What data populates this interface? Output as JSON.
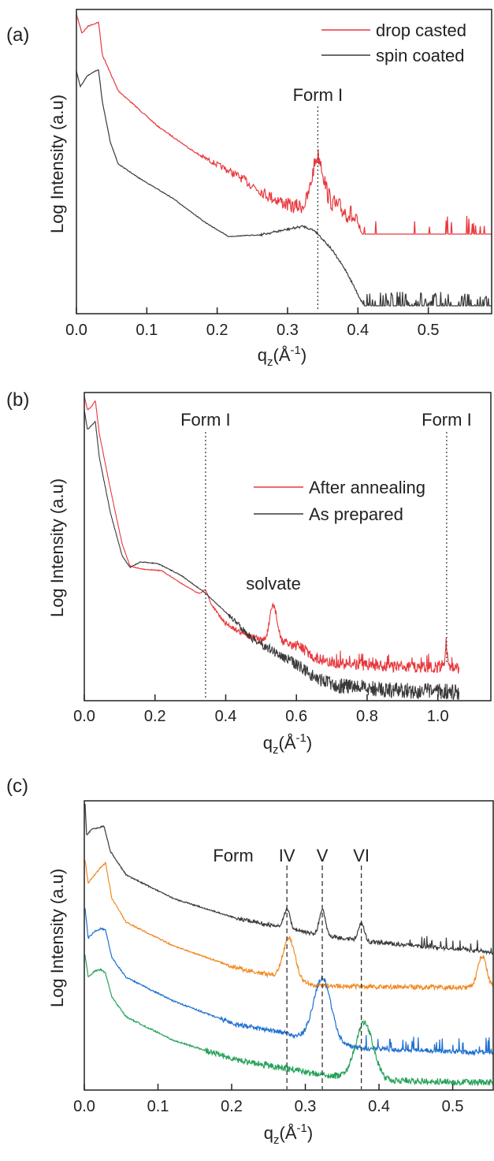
{
  "chart_data": [
    {
      "type": "line",
      "panel_label": "(a)",
      "ylabel": "Log Intensity (a.u)",
      "xlabel_main": "q",
      "xlabel_sub": "z",
      "xlabel_unit": "(Å",
      "xlabel_exp": "-1",
      "xlabel_close": ")",
      "xlim": [
        0.0,
        0.59
      ],
      "xticks": [
        0.0,
        0.1,
        0.2,
        0.3,
        0.4,
        0.5
      ],
      "xtick_labels": [
        "0.0",
        "0.1",
        "0.2",
        "0.3",
        "0.4",
        "0.5"
      ],
      "legend_position": "top-right",
      "series": [
        {
          "name": "drop casted",
          "color": "#e8383d"
        },
        {
          "name": "spin coated",
          "color": "#3a3a3a"
        }
      ],
      "annotations": [
        {
          "text": "Form I",
          "x": 0.343,
          "line": "dotted"
        }
      ]
    },
    {
      "type": "line",
      "panel_label": "(b)",
      "ylabel": "Log Intensity (a.u)",
      "xlabel_main": "q",
      "xlabel_sub": "z",
      "xlabel_unit": "(Å",
      "xlabel_exp": "-1",
      "xlabel_close": ")",
      "xlim": [
        0.0,
        1.15
      ],
      "xticks": [
        0.0,
        0.2,
        0.4,
        0.6,
        0.8,
        1.0
      ],
      "xtick_labels": [
        "0.0",
        "0.2",
        "0.4",
        "0.6",
        "0.8",
        "1.0"
      ],
      "legend_position": "center-right",
      "series": [
        {
          "name": "After annealing",
          "color": "#e8383d"
        },
        {
          "name": "As prepared",
          "color": "#3a3a3a"
        }
      ],
      "annotations": [
        {
          "text": "Form I",
          "x": 0.343,
          "line": "dotted"
        },
        {
          "text": "Form I",
          "x": 1.025,
          "line": "dotted"
        },
        {
          "text": "solvate",
          "x": 0.535,
          "color": "#e8383d"
        }
      ]
    },
    {
      "type": "line",
      "panel_label": "(c)",
      "ylabel": "Log Intensity (a.u)",
      "xlabel_main": "q",
      "xlabel_sub": "z",
      "xlabel_unit": "(Å",
      "xlabel_exp": "-1",
      "xlabel_close": ")",
      "xlim": [
        0.0,
        0.555
      ],
      "xticks": [
        0.0,
        0.1,
        0.2,
        0.3,
        0.4,
        0.5
      ],
      "xtick_labels": [
        "0.0",
        "0.1",
        "0.2",
        "0.3",
        "0.4",
        "0.5"
      ],
      "series": [
        {
          "color": "#3a3a3a"
        },
        {
          "color": "#f08a24"
        },
        {
          "color": "#1f6fd1"
        },
        {
          "color": "#27a35a"
        }
      ],
      "annotations": [
        {
          "text": "Form",
          "x": null
        },
        {
          "text": "IV",
          "x": 0.275,
          "line": "dashed"
        },
        {
          "text": "V",
          "x": 0.323,
          "line": "dashed"
        },
        {
          "text": "VI",
          "x": 0.376,
          "line": "dashed"
        }
      ]
    }
  ]
}
